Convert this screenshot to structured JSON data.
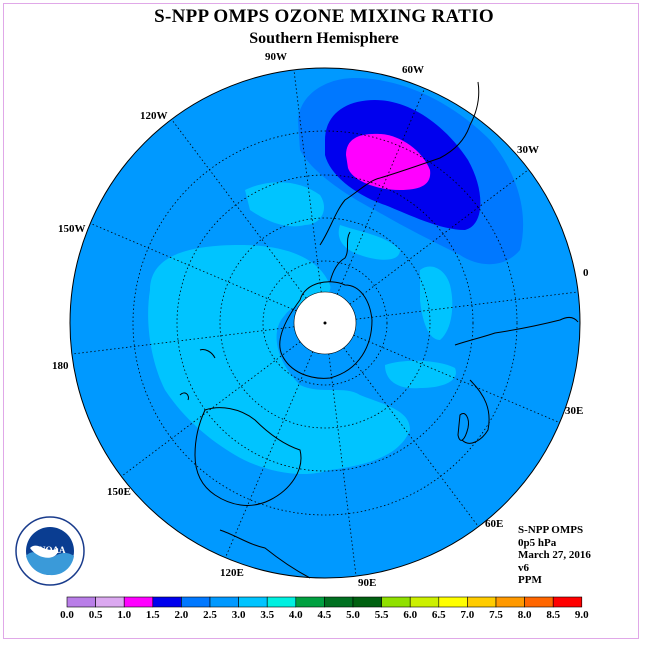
{
  "title": "S-NPP OMPS OZONE MIXING RATIO",
  "subtitle": "Southern Hemisphere",
  "longitude_labels": [
    "90W",
    "60W",
    "120W",
    "30W",
    "150W",
    "0",
    "180",
    "30E",
    "150E",
    "60E",
    "120E",
    "90E"
  ],
  "info": {
    "line1": "S-NPP OMPS",
    "line2": "0p5 hPa",
    "line3": "March 27, 2016",
    "line4": "v6",
    "line5": "PPM"
  },
  "logo": {
    "text": "NOAA",
    "ring_text": "NATIONAL OCEANIC AND ATMOSPHERIC ADMINISTRATION U.S. DEPARTMENT OF COMMERCE"
  },
  "colorbar": {
    "labels": [
      "0.0",
      "0.5",
      "1.0",
      "1.5",
      "2.0",
      "2.5",
      "3.0",
      "3.5",
      "4.0",
      "4.5",
      "5.0",
      "5.5",
      "6.0",
      "6.5",
      "7.0",
      "7.5",
      "8.0",
      "8.5",
      "9.0"
    ],
    "colors": [
      "#b97ee8",
      "#dba8f0",
      "#ff00ff",
      "#0000ee",
      "#0078ff",
      "#0099ff",
      "#00c4ff",
      "#00f0e0",
      "#00a040",
      "#007020",
      "#006010",
      "#90e000",
      "#ccf000",
      "#ffff00",
      "#ffcc00",
      "#ff9900",
      "#ff6600",
      "#ff0000",
      "#8b5a3c"
    ]
  },
  "map_colors": {
    "background": "#0099ff",
    "level_2_0": "#0078ff",
    "level_1_5": "#0000ee",
    "level_1_0": "#ff00ff",
    "level_3_0": "#00c4ff"
  }
}
